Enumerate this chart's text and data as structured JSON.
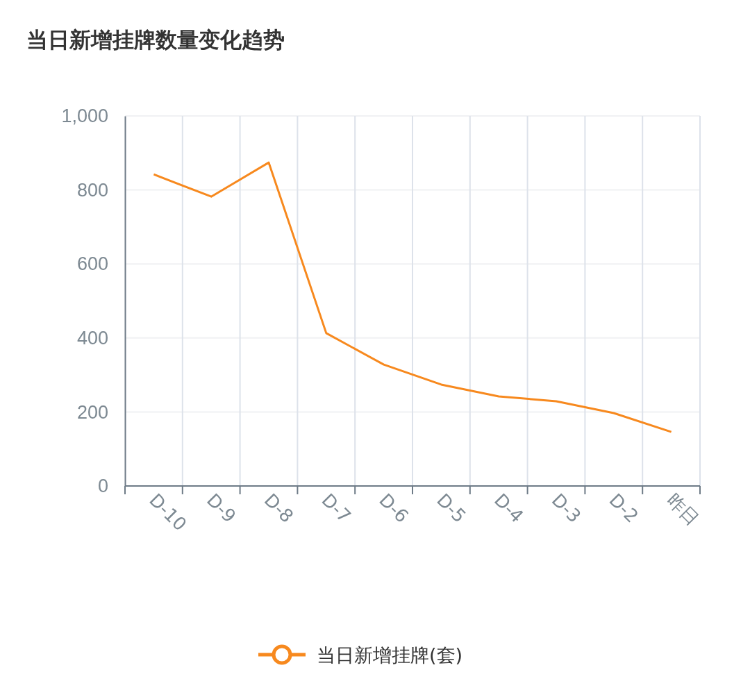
{
  "chart_data": {
    "type": "line",
    "title": "当日新增挂牌数量变化趋势",
    "categories": [
      "D-10",
      "D-9",
      "D-8",
      "D-7",
      "D-6",
      "D-5",
      "D-4",
      "D-3",
      "D-2",
      "昨日"
    ],
    "series": [
      {
        "name": "当日新增挂牌(套)",
        "color": "#f7891e",
        "values": [
          842,
          782,
          874,
          413,
          328,
          274,
          242,
          229,
          197,
          146
        ]
      }
    ],
    "ylim": [
      0,
      1000
    ],
    "yticks": [
      0,
      200,
      400,
      600,
      800,
      {
        "value": 1000,
        "label": "1,000"
      }
    ],
    "grid": true,
    "legend": "bottom",
    "marker": "none",
    "line_style": "solid"
  }
}
